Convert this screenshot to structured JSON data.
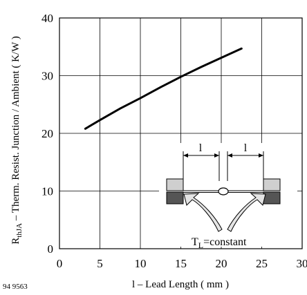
{
  "figure_id": "94 9563",
  "inset": {
    "dimension_label": "l",
    "condition_main": "T",
    "condition_sub": "L",
    "condition_rest": "=constant"
  },
  "chart_data": {
    "type": "line",
    "xlabel": "l – Lead Length ( mm )",
    "ylabel_main": "R",
    "ylabel_sub": "thJA",
    "ylabel_rest": " – Therm. Resist. Junction / Ambient ( K/W )",
    "xlim": [
      0,
      30
    ],
    "ylim": [
      0,
      40
    ],
    "xticks": [
      0,
      5,
      10,
      15,
      20,
      25,
      30
    ],
    "yticks": [
      0,
      10,
      20,
      30,
      40
    ],
    "grid": true,
    "series": [
      {
        "x": [
          3.2,
          5,
          7.5,
          10,
          12.5,
          15,
          17.5,
          20,
          22.5
        ],
        "y": [
          20.8,
          22.3,
          24.3,
          26.1,
          28.0,
          29.8,
          31.5,
          33.1,
          34.7
        ],
        "color": "#000000"
      }
    ]
  }
}
